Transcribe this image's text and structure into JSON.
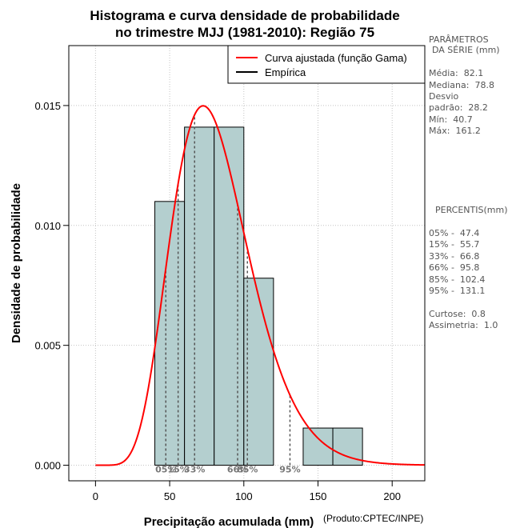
{
  "chart_data": {
    "type": "histogram",
    "title_line1": "Histograma e curva densidade de probabilidade",
    "title_line2": "no trimestre MJJ (1981-2010): Região 75",
    "xlabel": "Precipitação acumulada (mm)",
    "ylabel": "Densidade de probabilidade",
    "credit": "(Produto:CPTEC/INPE)",
    "xlim": [
      -18,
      222
    ],
    "ylim": [
      -0.00065,
      0.0175
    ],
    "x_ticks": [
      0,
      50,
      100,
      150,
      200
    ],
    "x_tick_labels": [
      "0",
      "50",
      "100",
      "150",
      "200"
    ],
    "y_ticks": [
      0.0,
      0.005,
      0.01,
      0.015
    ],
    "y_tick_labels": [
      "0.000",
      "0.005",
      "0.010",
      "0.015"
    ],
    "grid": true,
    "bins": [
      {
        "x0": 40,
        "x1": 60,
        "density": 0.011
      },
      {
        "x0": 60,
        "x1": 80,
        "density": 0.0141
      },
      {
        "x0": 80,
        "x1": 100,
        "density": 0.0141
      },
      {
        "x0": 100,
        "x1": 120,
        "density": 0.0078
      },
      {
        "x0": 120,
        "x1": 140,
        "density": 0.0
      },
      {
        "x0": 140,
        "x1": 160,
        "density": 0.00155
      },
      {
        "x0": 160,
        "x1": 180,
        "density": 0.00155
      }
    ],
    "gamma_fit": {
      "shape": 8.6,
      "scale": 9.55,
      "color": "#ff0000"
    },
    "bar_color": "#b4cfcf",
    "percentile_lines": [
      {
        "label": "05%",
        "x": 47.4
      },
      {
        "label": "15%",
        "x": 55.7
      },
      {
        "label": "33%",
        "x": 66.8
      },
      {
        "label": "66%",
        "x": 95.8
      },
      {
        "label": "85%",
        "x": 102.4
      },
      {
        "label": "95%",
        "x": 131.1
      }
    ],
    "legend": [
      {
        "label": "Curva ajustada (função Gama)",
        "color": "#ff0000"
      },
      {
        "label": "Empírica",
        "color": "#000000"
      }
    ],
    "legend_position": "top-right"
  },
  "params": {
    "header1": "PARÂMETROS",
    "header2": "DA SÉRIE (mm)",
    "lines": [
      "Média:  82.1",
      "Mediana:  78.8",
      "Desvio",
      "padrão:  28.2",
      "Mín:  40.7",
      "Máx:  161.2"
    ]
  },
  "percentiles": {
    "header": "PERCENTIS(mm)",
    "lines": [
      "05% -  47.4",
      "15% -  55.7",
      "33% -  66.8",
      "66% -  95.8",
      "85% -  102.4",
      "95% -  131.1"
    ]
  },
  "stats": {
    "lines": [
      "Curtose:  0.8",
      "Assimetria:  1.0"
    ]
  }
}
